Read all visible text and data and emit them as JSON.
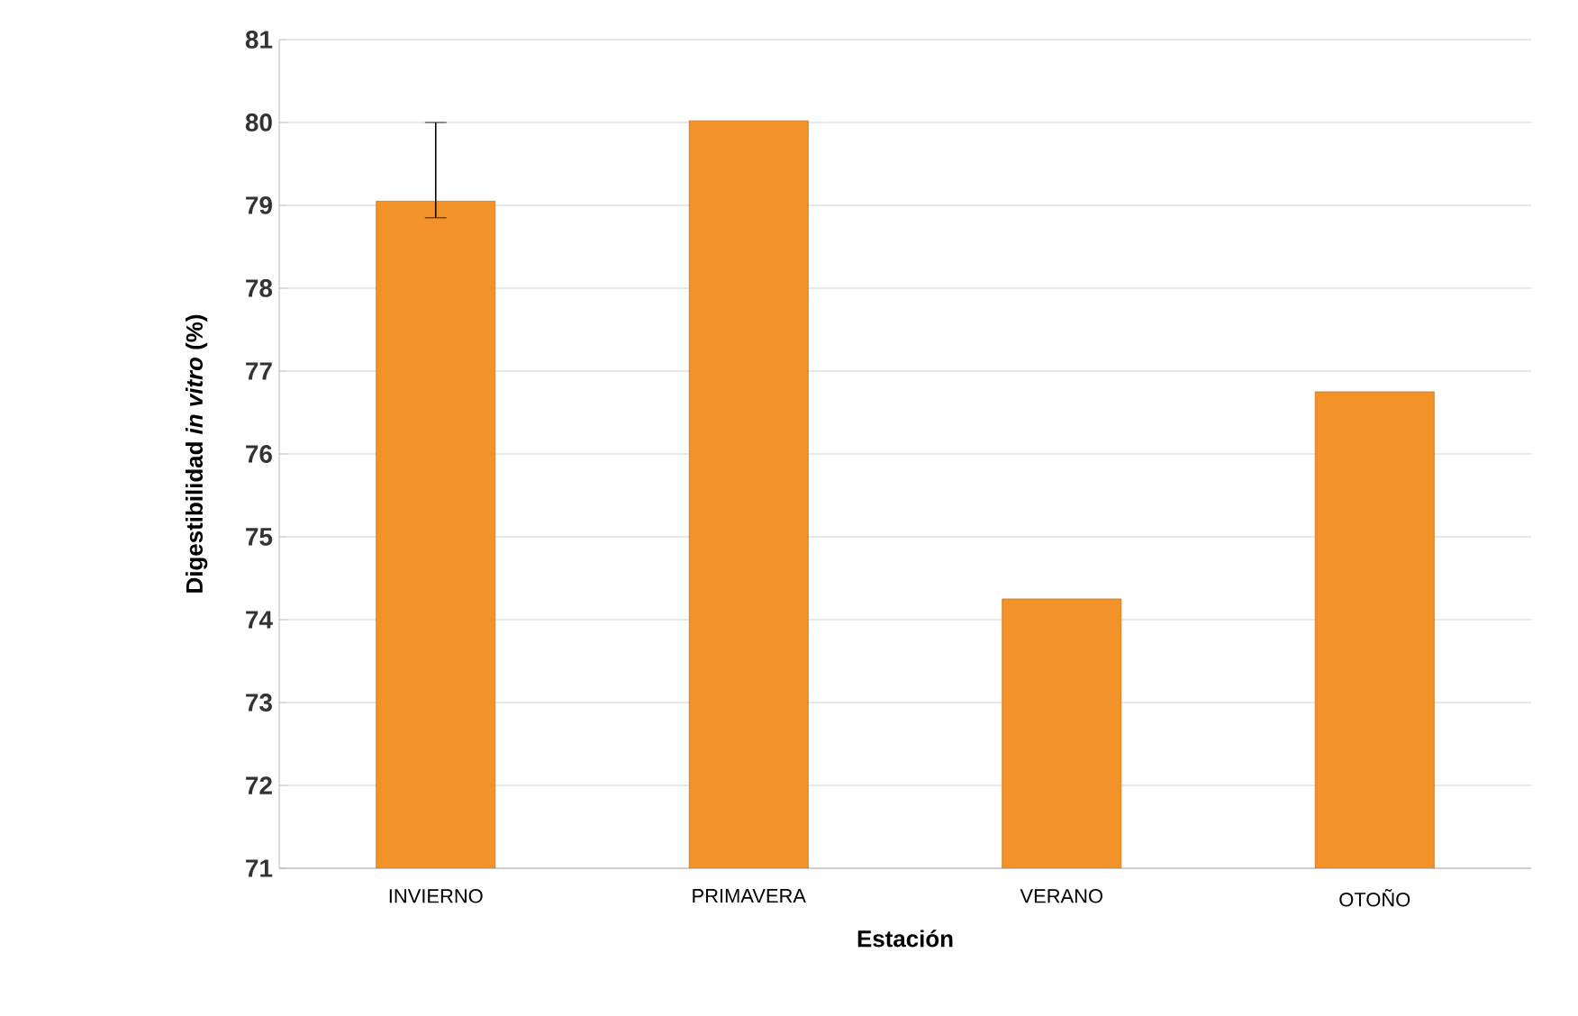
{
  "chart_data": {
    "type": "bar",
    "xlabel": "Estación",
    "ylabel": "Digestibilidad *in vitro* (%)",
    "categories": [
      "INVIERNO",
      "PRIMAVERA",
      "VERANO",
      "OTOÑO"
    ],
    "series": [
      {
        "color": "#f39229",
        "values": [
          79.05,
          80.02,
          74.25,
          76.75
        ],
        "errors": [
          [
            78.85,
            80.0
          ],
          null,
          null,
          null
        ]
      }
    ],
    "ylim": [
      71,
      81
    ],
    "yticks": [
      71,
      72,
      73,
      74,
      75,
      76,
      77,
      78,
      79,
      80,
      81
    ],
    "grid": "y"
  }
}
